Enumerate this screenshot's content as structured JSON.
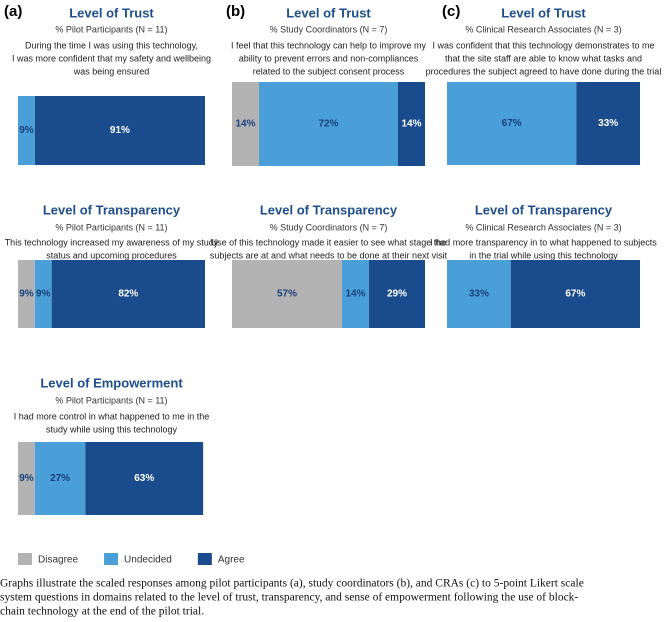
{
  "panels": [
    "(a)",
    "(b)",
    "(c)"
  ],
  "chart_data": [
    {
      "type": "stacked-bar",
      "title": "Level of Trust",
      "subtitle": "% Pilot Participants (N = 11)",
      "question": [
        "During the time I was using this technology,",
        "I was more confident that my safety and wellbeing",
        "was being ensured"
      ],
      "xlim": [
        0,
        100
      ],
      "series": [
        {
          "name": "Undecided",
          "color": "#4a9fd8",
          "values": [
            9
          ],
          "value_labels": [
            "9%"
          ]
        },
        {
          "name": "Agree",
          "color": "#1a4b8c",
          "values": [
            91
          ],
          "value_labels": [
            "91%"
          ]
        }
      ]
    },
    {
      "type": "stacked-bar",
      "title": "Level of Trust",
      "subtitle": "% Study Coordinators (N = 7)",
      "question": [
        "I feel that this technology can help to improve my",
        "ability to prevent errors and non-compliances",
        "related to the subject consent process"
      ],
      "xlim": [
        0,
        100
      ],
      "series": [
        {
          "name": "Disagree",
          "color": "#b3b3b3",
          "values": [
            14
          ],
          "value_labels": [
            "14%"
          ]
        },
        {
          "name": "Undecided",
          "color": "#4a9fd8",
          "values": [
            72
          ],
          "value_labels": [
            "72%"
          ]
        },
        {
          "name": "Agree",
          "color": "#1a4b8c",
          "values": [
            14
          ],
          "value_labels": [
            "14%"
          ]
        }
      ]
    },
    {
      "type": "stacked-bar",
      "title": "Level of Trust",
      "subtitle": "% Clinical Research Associates (N = 3)",
      "question": [
        "I was confident that this technology demonstrates to me",
        "that the site staff are able to know what tasks and",
        "procedures the subject agreed to have done during the trial"
      ],
      "xlim": [
        0,
        100
      ],
      "series": [
        {
          "name": "Undecided",
          "color": "#4a9fd8",
          "values": [
            67
          ],
          "value_labels": [
            "67%"
          ]
        },
        {
          "name": "Agree",
          "color": "#1a4b8c",
          "values": [
            33
          ],
          "value_labels": [
            "33%"
          ]
        }
      ]
    },
    {
      "type": "stacked-bar",
      "title": "Level of Transparency",
      "subtitle": "% Pilot Participants (N = 11)",
      "question": [
        "This technology increased my awareness of my study",
        "status and upcoming procedures"
      ],
      "xlim": [
        0,
        100
      ],
      "series": [
        {
          "name": "Disagree",
          "color": "#b3b3b3",
          "values": [
            9
          ],
          "value_labels": [
            "9%"
          ]
        },
        {
          "name": "Undecided",
          "color": "#4a9fd8",
          "values": [
            9
          ],
          "value_labels": [
            "9%"
          ]
        },
        {
          "name": "Agree",
          "color": "#1a4b8c",
          "values": [
            82
          ],
          "value_labels": [
            "82%"
          ]
        }
      ]
    },
    {
      "type": "stacked-bar",
      "title": "Level of Transparency",
      "subtitle": "% Study Coordinators (N = 7)",
      "question": [
        "Use of this technology made it easier to see what stage the",
        "subjects are at and what needs to be done at their next visit"
      ],
      "xlim": [
        0,
        100
      ],
      "series": [
        {
          "name": "Disagree",
          "color": "#b3b3b3",
          "values": [
            57
          ],
          "value_labels": [
            "57%"
          ]
        },
        {
          "name": "Undecided",
          "color": "#4a9fd8",
          "values": [
            14
          ],
          "value_labels": [
            "14%"
          ]
        },
        {
          "name": "Agree",
          "color": "#1a4b8c",
          "values": [
            29
          ],
          "value_labels": [
            "29%"
          ]
        }
      ]
    },
    {
      "type": "stacked-bar",
      "title": "Level of Transparency",
      "subtitle": "% Clinical Research Associates (N = 3)",
      "question": [
        "I had more transparency in to what happened to subjects",
        "in the trial while using this technology"
      ],
      "xlim": [
        0,
        100
      ],
      "series": [
        {
          "name": "Undecided",
          "color": "#4a9fd8",
          "values": [
            33
          ],
          "value_labels": [
            "33%"
          ]
        },
        {
          "name": "Agree",
          "color": "#1a4b8c",
          "values": [
            67
          ],
          "value_labels": [
            "67%"
          ]
        }
      ]
    },
    {
      "type": "stacked-bar",
      "title": "Level of Empowerment",
      "subtitle": "% Pilot  Participants (N = 11)",
      "question": [
        "I had more control in what happened to me in the",
        "study while using this technology"
      ],
      "xlim": [
        0,
        100
      ],
      "series": [
        {
          "name": "Disagree",
          "color": "#b3b3b3",
          "values": [
            9
          ],
          "value_labels": [
            "9%"
          ]
        },
        {
          "name": "Undecided",
          "color": "#4a9fd8",
          "values": [
            27
          ],
          "value_labels": [
            "27%"
          ]
        },
        {
          "name": "Agree",
          "color": "#1a4b8c",
          "values": [
            63
          ],
          "value_labels": [
            "63%"
          ]
        }
      ]
    }
  ],
  "caption": [
    "Graphs illustrate the scaled responses among pilot participants (a), study coordinators (b), and CRAs (c) to 5-point Likert scale",
    "system questions in domains related to the level of trust, transparency, and sense of empowerment following the use of block-",
    "chain technology at the end of the pilot trial."
  ]
}
